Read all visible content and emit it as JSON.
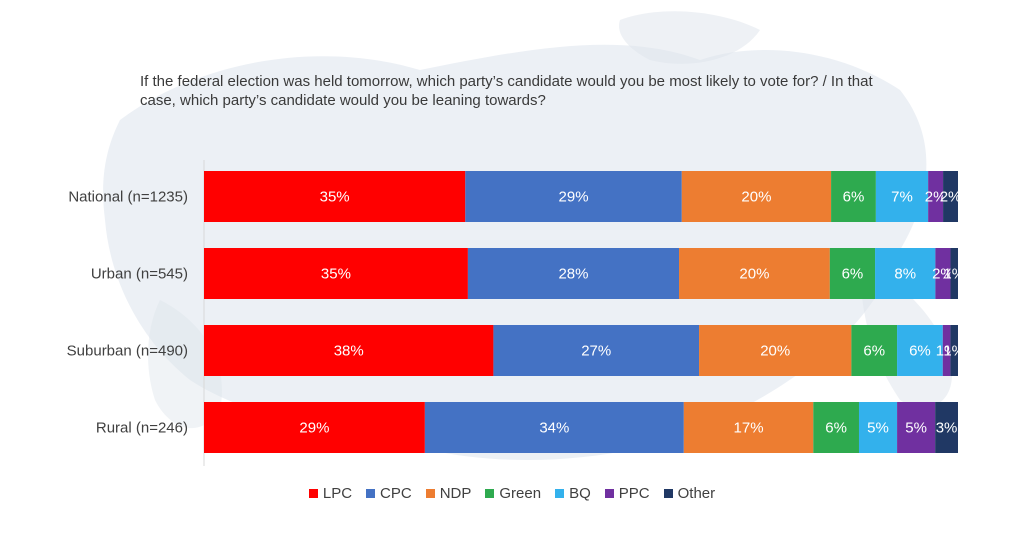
{
  "chart_data": {
    "type": "bar",
    "orientation": "horizontal",
    "stacked": true,
    "title": "If the federal election was held tomorrow, which party’s candidate would you be most likely to vote for? / In that case, which party’s candidate would you be leaning towards?",
    "categories": [
      "National (n=1235)",
      "Urban (n=545)",
      "Suburban (n=490)",
      "Rural (n=246)"
    ],
    "series": [
      {
        "name": "LPC",
        "color": "#ff0000",
        "values": [
          35,
          35,
          38,
          29
        ],
        "labels": [
          "35%",
          "35%",
          "38%",
          "29%"
        ]
      },
      {
        "name": "CPC",
        "color": "#4472c4",
        "values": [
          29,
          28,
          27,
          34
        ],
        "labels": [
          "29%",
          "28%",
          "27%",
          "34%"
        ]
      },
      {
        "name": "NDP",
        "color": "#ed7d31",
        "values": [
          20,
          20,
          20,
          17
        ],
        "labels": [
          "20%",
          "20%",
          "20%",
          "17%"
        ]
      },
      {
        "name": "Green",
        "color": "#2eaa4f",
        "values": [
          6,
          6,
          6,
          6
        ],
        "labels": [
          "6%",
          "6%",
          "6%",
          "6%"
        ]
      },
      {
        "name": "BQ",
        "color": "#33b1ec",
        "values": [
          7,
          8,
          6,
          5
        ],
        "labels": [
          "7%",
          "8%",
          "6%",
          "5%"
        ]
      },
      {
        "name": "PPC",
        "color": "#7030a0",
        "values": [
          2,
          2,
          1,
          5
        ],
        "labels": [
          "2%",
          "2%",
          "1%",
          "5%"
        ]
      },
      {
        "name": "Other",
        "color": "#203864",
        "values": [
          2,
          1,
          1,
          3
        ],
        "labels": [
          "2%",
          "1%",
          "1%",
          "3%"
        ]
      }
    ],
    "xlim": [
      0,
      100
    ],
    "legend_position": "bottom",
    "grid": false
  }
}
